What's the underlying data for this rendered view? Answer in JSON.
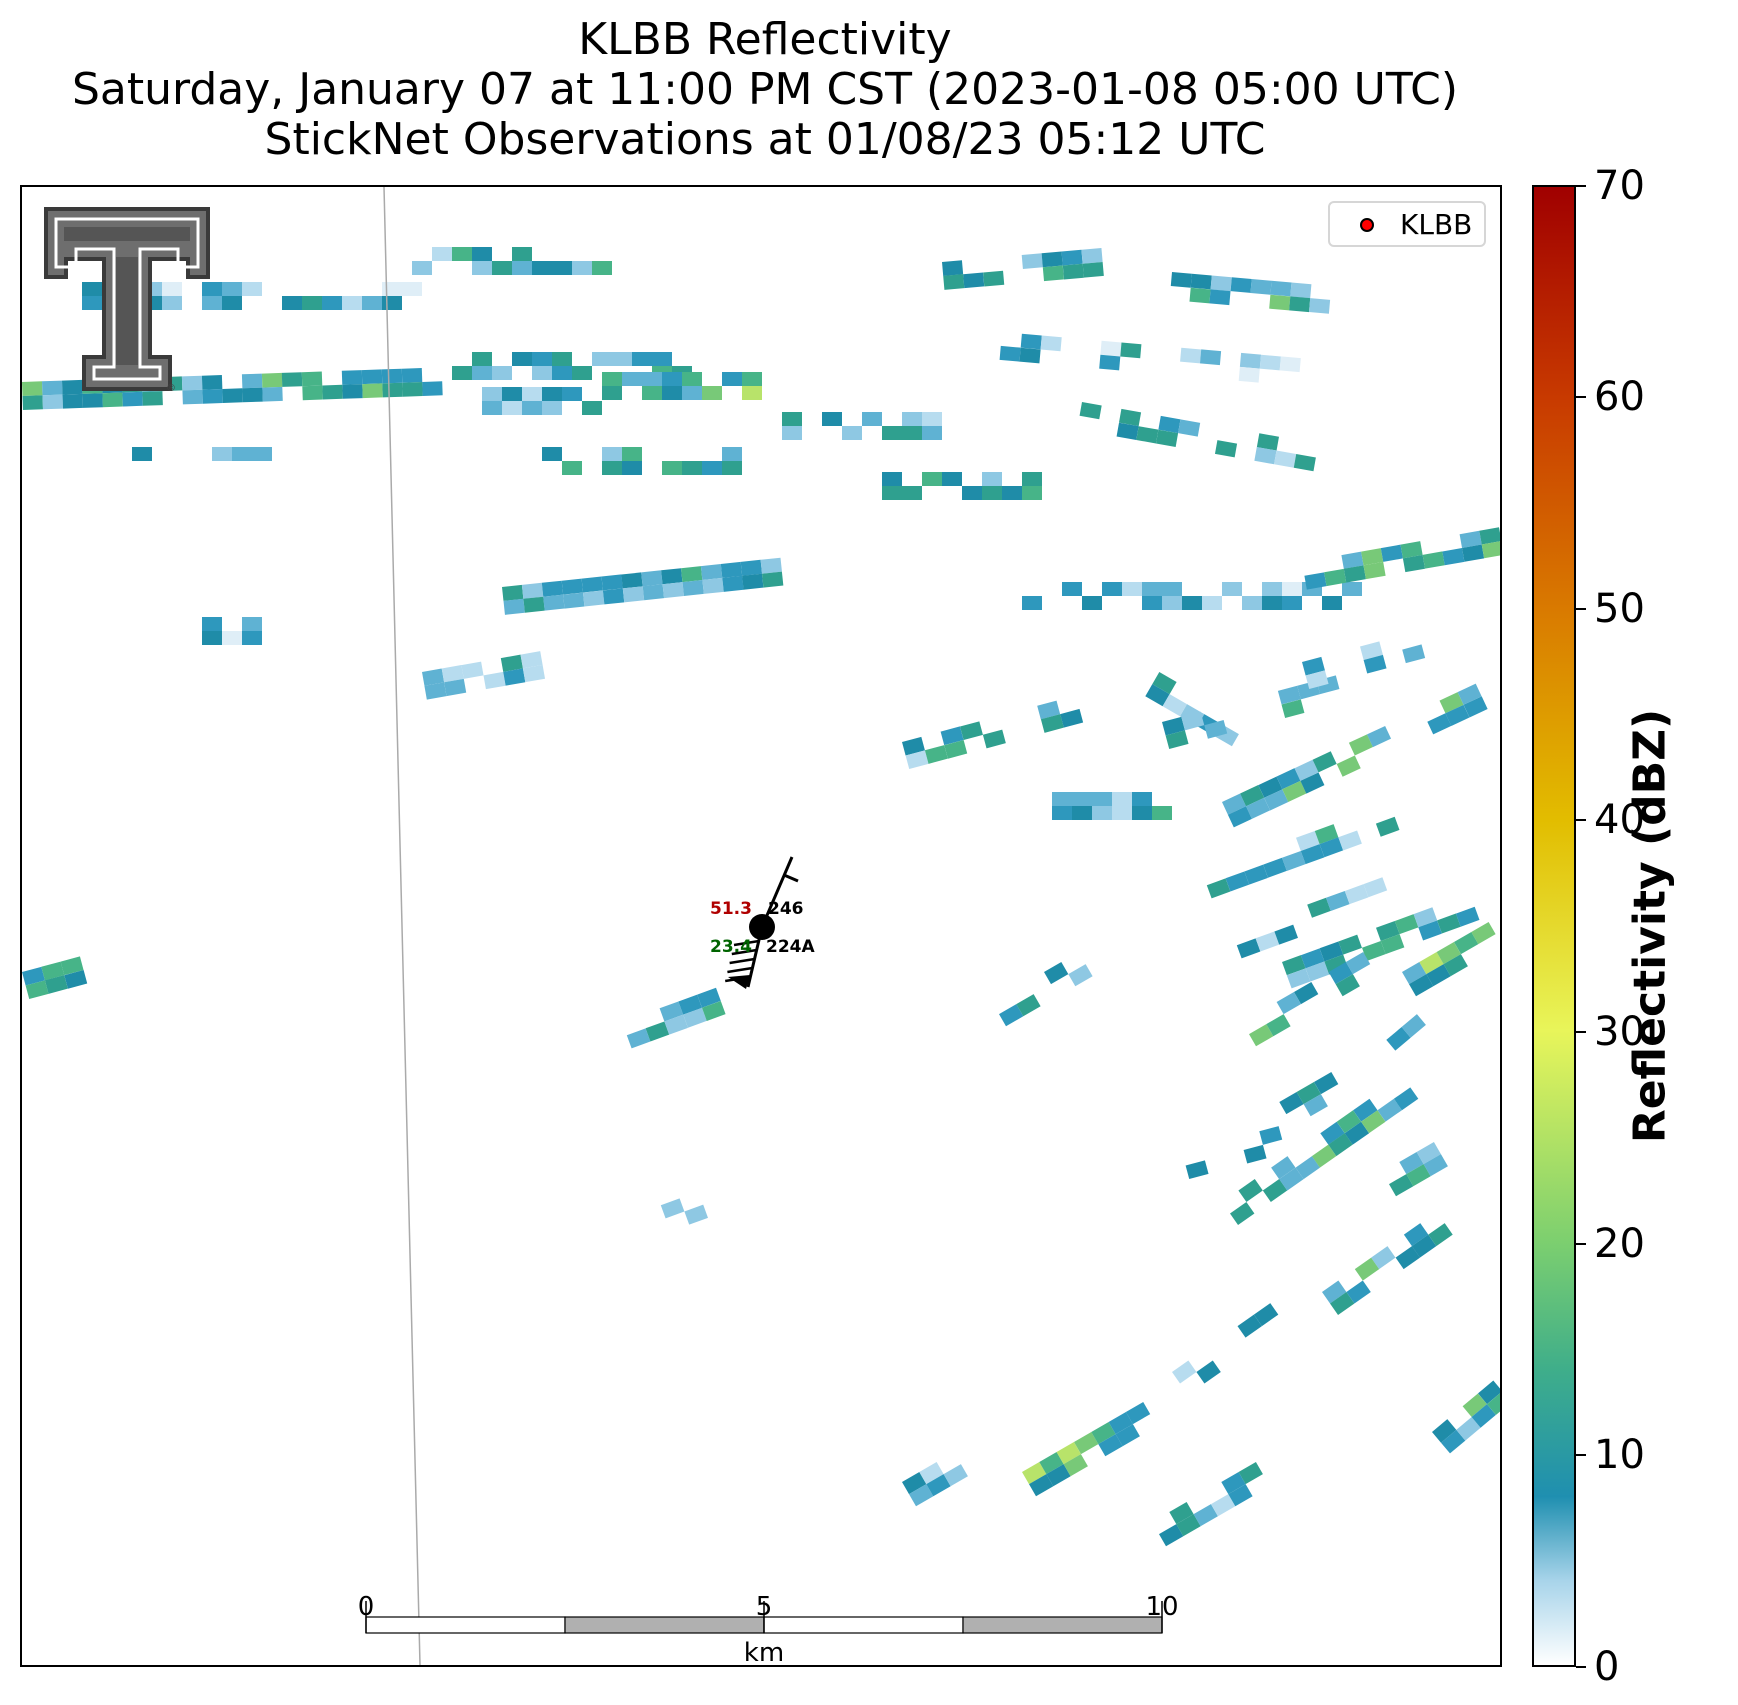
{
  "title": {
    "line1": "KLBB Reflectivity",
    "line2": "Saturday, January 07 at 11:00 PM CST (2023-01-08 05:00 UTC)",
    "line3": "StickNet Observations at 01/08/23 05:12 UTC"
  },
  "legend": {
    "label": "KLBB",
    "marker_color": "#ff0000"
  },
  "colorbar": {
    "label": "Reflectivity (dBZ)",
    "ticks": [
      "0",
      "10",
      "20",
      "30",
      "40",
      "50",
      "60",
      "70"
    ],
    "min": 0,
    "max": 70,
    "colors": [
      {
        "v": 0,
        "c": "#ffffff"
      },
      {
        "v": 4,
        "c": "#a8d4ea"
      },
      {
        "v": 8,
        "c": "#1f8fb0"
      },
      {
        "v": 14,
        "c": "#3fae8a"
      },
      {
        "v": 20,
        "c": "#7ccf6f"
      },
      {
        "v": 30,
        "c": "#e8f55a"
      },
      {
        "v": 40,
        "c": "#e2bd00"
      },
      {
        "v": 50,
        "c": "#d97a00"
      },
      {
        "v": 60,
        "c": "#c83a00"
      },
      {
        "v": 70,
        "c": "#a00000"
      }
    ]
  },
  "scale_bar": {
    "labels": [
      "0",
      "5",
      "10"
    ],
    "unit": "km"
  },
  "station": {
    "id": "224A",
    "temperature": "51.3",
    "dewpoint": "23.4",
    "pressure": "246",
    "temperature_color": "#b00000",
    "dewpoint_color": "#006400"
  },
  "logo": {
    "name": "texas-tech-double-t-logo"
  }
}
